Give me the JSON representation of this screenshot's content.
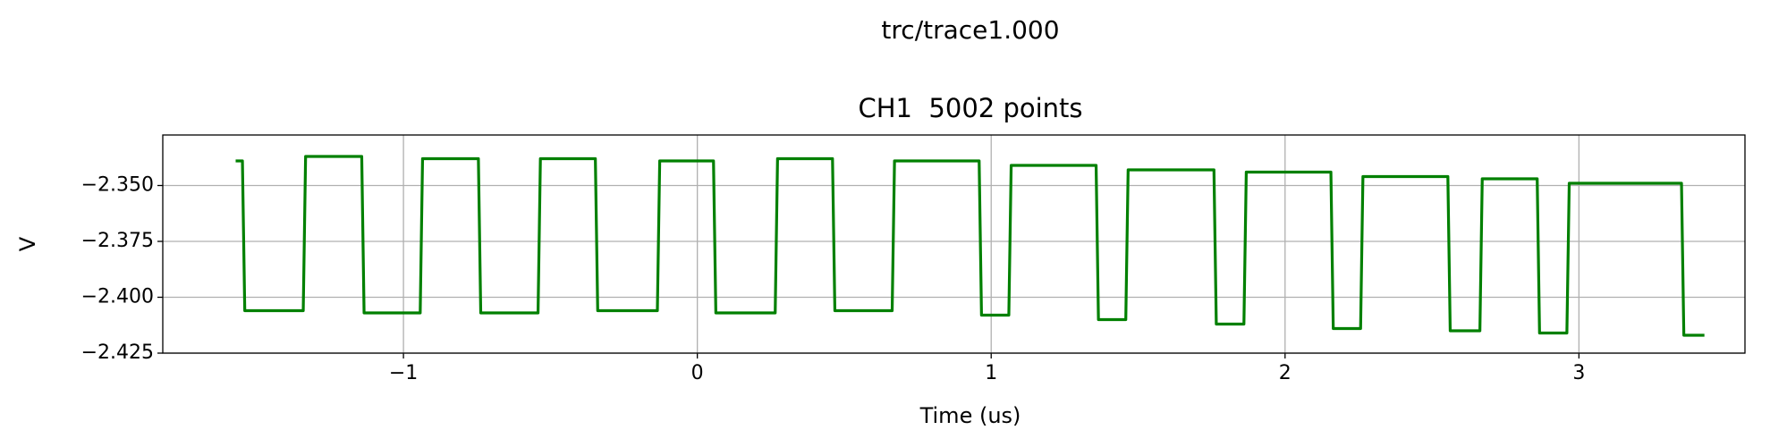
{
  "chart_data": {
    "type": "line",
    "suptitle": "trc/trace1.000",
    "title": "CH1  5002 points",
    "xlabel": "Time (us)",
    "ylabel": "V",
    "grid": true,
    "xlim": [
      -1.819,
      3.565
    ],
    "ylim": [
      -2.425,
      -2.3274
    ],
    "xticks": [
      {
        "value": -1,
        "label": "−1"
      },
      0,
      1,
      2,
      3
    ],
    "yticks": [
      {
        "value": -2.35,
        "label": "−2.350"
      },
      {
        "value": -2.375,
        "label": "−2.375"
      },
      {
        "value": -2.4,
        "label": "−2.400"
      },
      {
        "value": -2.425,
        "label": "−2.425"
      }
    ],
    "series": [
      {
        "name": "CH1",
        "color": "#008000",
        "x": [
          -1.571,
          -1.548,
          -1.54,
          -1.341,
          -1.333,
          -1.142,
          -1.134,
          -0.943,
          -0.935,
          -0.745,
          -0.737,
          -0.542,
          -0.534,
          -0.347,
          -0.339,
          -0.136,
          -0.128,
          0.055,
          0.063,
          0.265,
          0.273,
          0.46,
          0.468,
          0.663,
          0.671,
          0.959,
          0.967,
          1.06,
          1.068,
          1.357,
          1.365,
          1.458,
          1.466,
          1.758,
          1.766,
          1.86,
          1.868,
          2.156,
          2.164,
          2.257,
          2.265,
          2.554,
          2.562,
          2.663,
          2.671,
          2.858,
          2.866,
          2.959,
          2.967,
          3.349,
          3.357,
          3.427
        ],
        "values": [
          -2.339,
          -2.339,
          -2.406,
          -2.406,
          -2.337,
          -2.337,
          -2.407,
          -2.407,
          -2.338,
          -2.338,
          -2.407,
          -2.407,
          -2.338,
          -2.338,
          -2.406,
          -2.406,
          -2.339,
          -2.339,
          -2.407,
          -2.407,
          -2.338,
          -2.338,
          -2.406,
          -2.406,
          -2.339,
          -2.339,
          -2.408,
          -2.408,
          -2.341,
          -2.341,
          -2.41,
          -2.41,
          -2.343,
          -2.343,
          -2.412,
          -2.412,
          -2.344,
          -2.344,
          -2.414,
          -2.414,
          -2.346,
          -2.346,
          -2.415,
          -2.415,
          -2.347,
          -2.347,
          -2.416,
          -2.416,
          -2.349,
          -2.349,
          -2.417,
          -2.417
        ]
      }
    ]
  }
}
